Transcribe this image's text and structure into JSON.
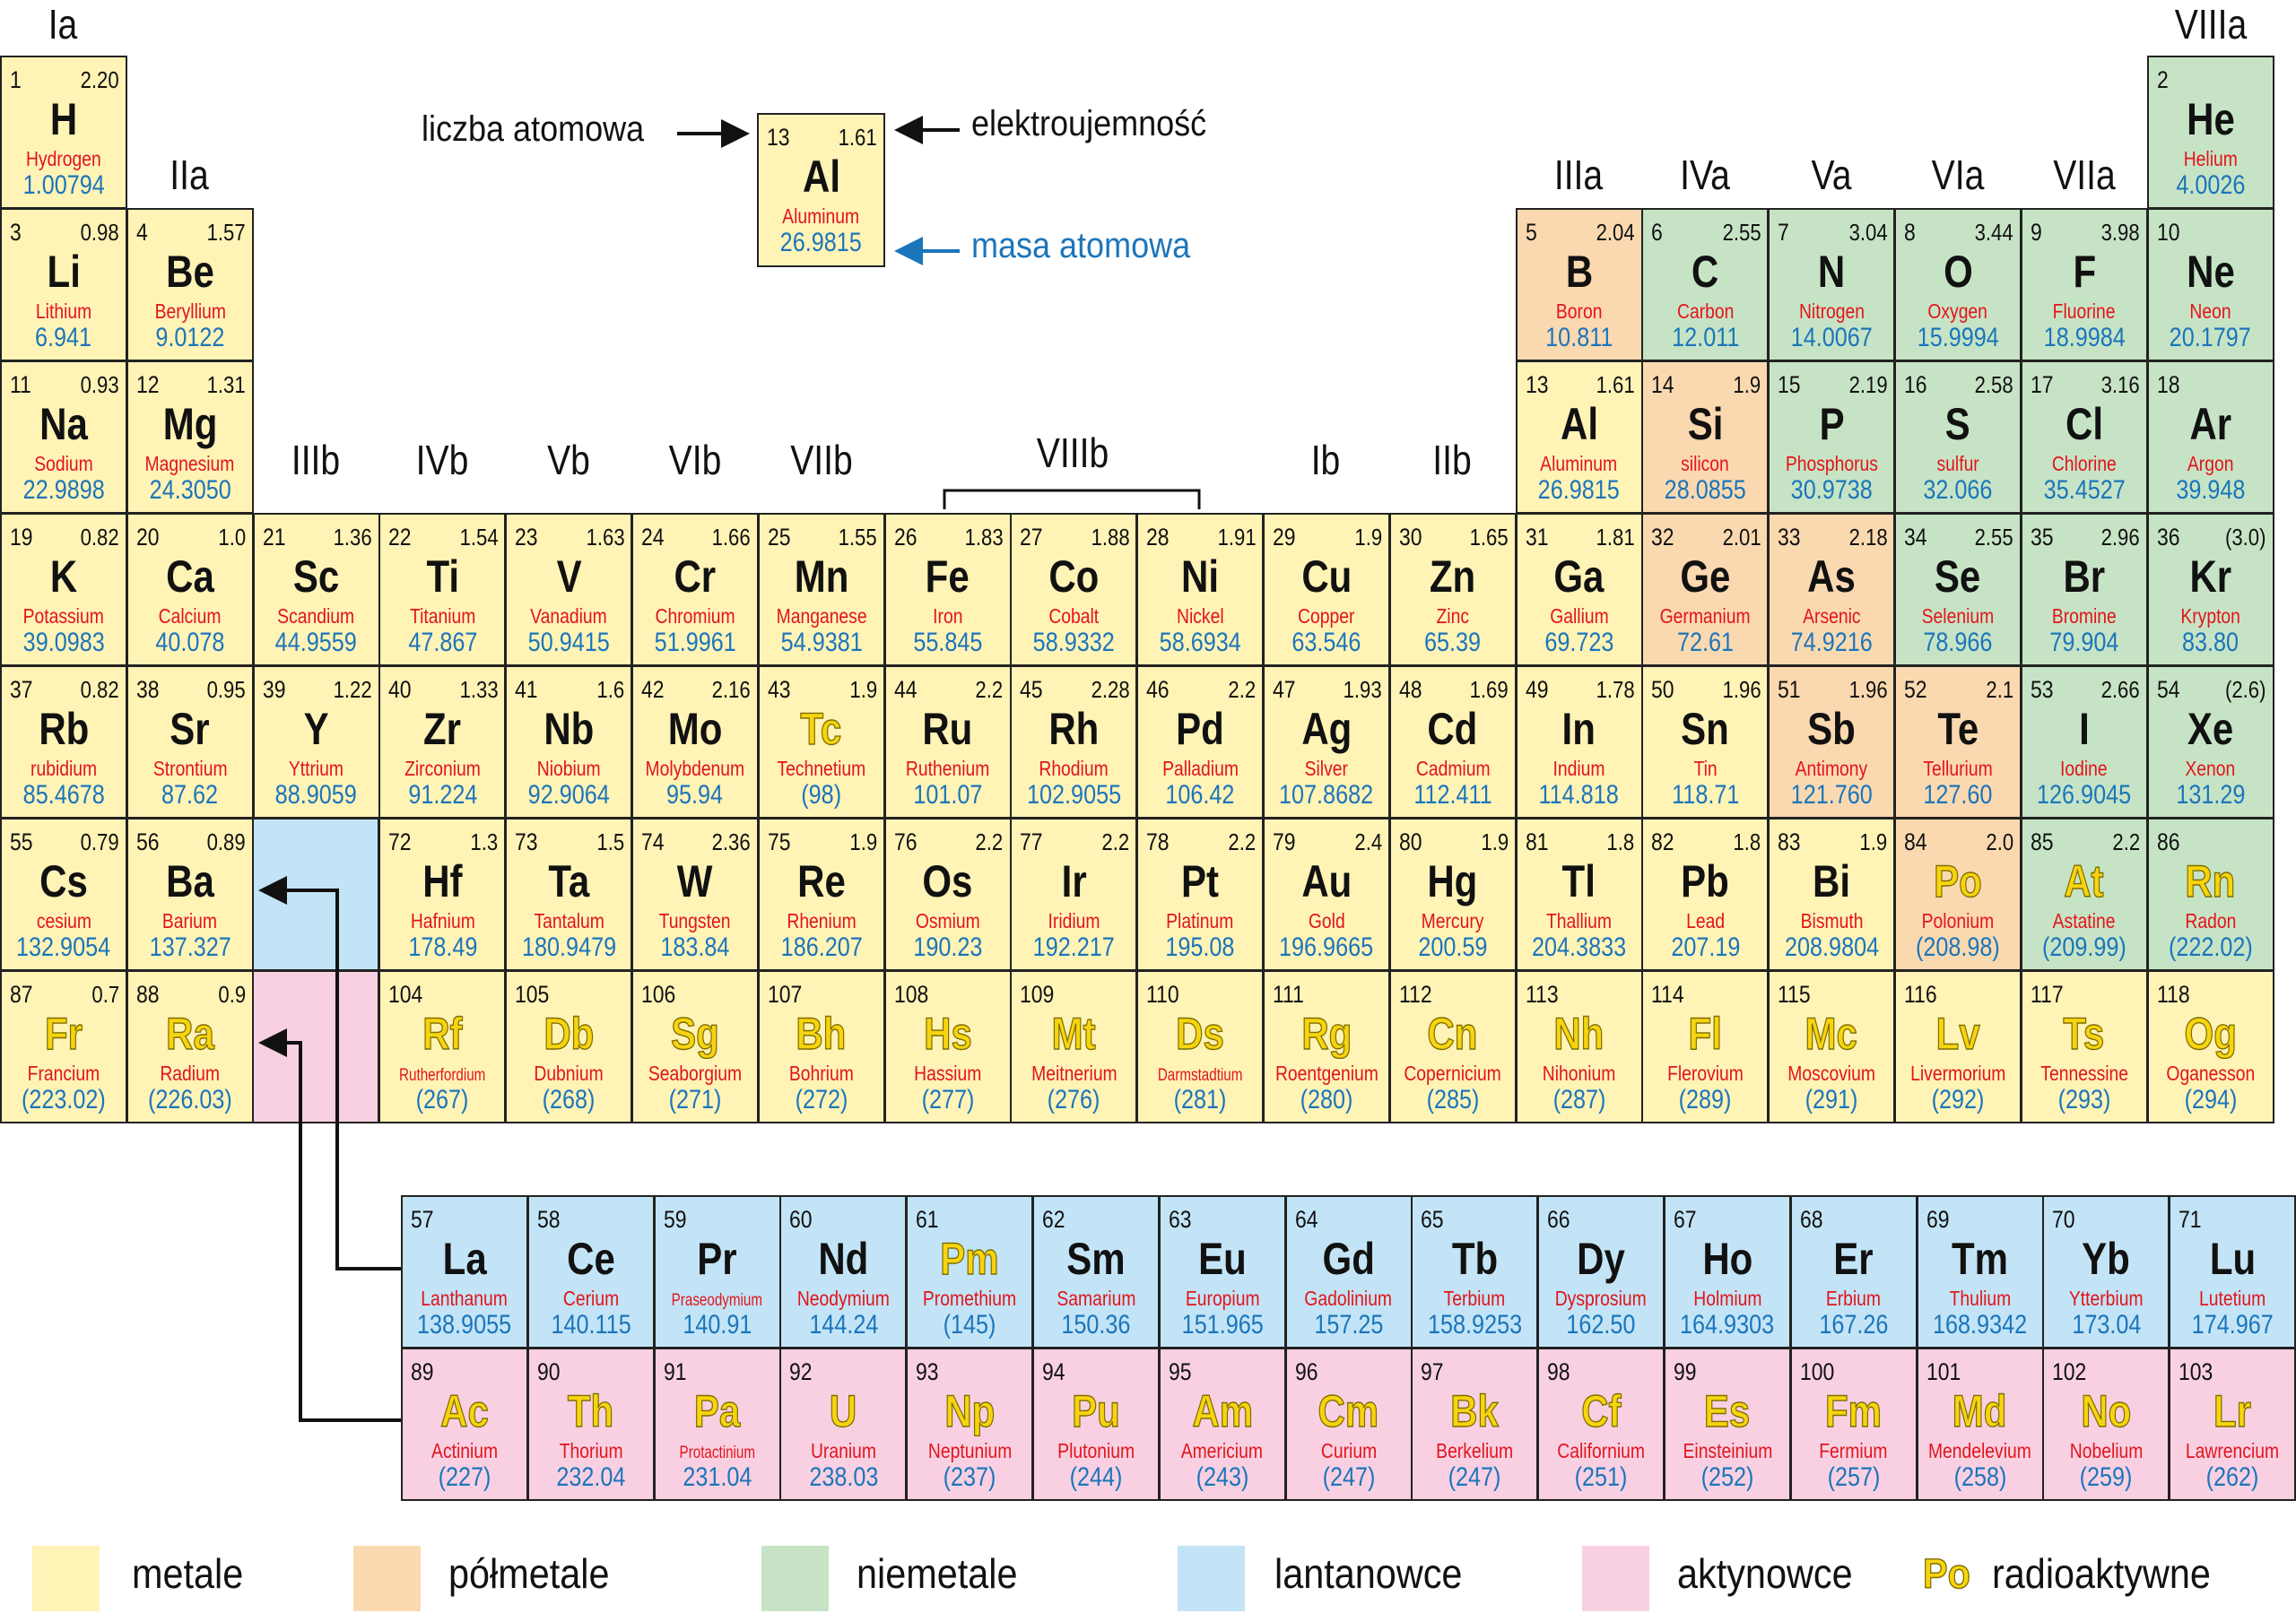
{
  "group_labels": {
    "Ia": "Ia",
    "IIa": "IIa",
    "IIIb": "IIIb",
    "IVb": "IVb",
    "Vb": "Vb",
    "VIb": "VIb",
    "VIIb": "VIIb",
    "VIIIb": "VIIIb",
    "Ib": "Ib",
    "IIb": "IIb",
    "IIIa": "IIIa",
    "IVa": "IVa",
    "Va": "Va",
    "VIa": "VIa",
    "VIIa": "VIIa",
    "VIIIa": "VIIIa"
  },
  "key": {
    "atomic_number_label": "liczba atomowa",
    "electronegativity_label": "elektroujemność",
    "atomic_mass_label": "masa atomowa",
    "example": {
      "z": "13",
      "en": "1.61",
      "sym": "Al",
      "name": "Aluminum",
      "mass": "26.9815"
    }
  },
  "colors": {
    "metal": "#fff3b6",
    "semi": "#fbd9b0",
    "non": "#c6e4c5",
    "lan": "#c2e4f6",
    "act": "#f8d0e2",
    "name": "#e3141b",
    "mass": "#1b75bb",
    "radioactive": "#f7d40f"
  },
  "legend": [
    {
      "label": "metale",
      "color": "#fff3b6"
    },
    {
      "label": "półmetale",
      "color": "#fbd9b0"
    },
    {
      "label": "niemetale",
      "color": "#c6e4c5"
    },
    {
      "label": "lantanowce",
      "color": "#c2e4f6"
    },
    {
      "label": "aktynowce",
      "color": "#f8d0e2"
    }
  ],
  "legend_radioactive": {
    "sample": "Po",
    "label": "radioaktywne"
  },
  "elements": [
    {
      "z": "1",
      "en": "2.20",
      "sym": "H",
      "name": "Hydrogen",
      "mass": "1.00794",
      "cat": "metal",
      "rad": false
    },
    {
      "z": "2",
      "en": "",
      "sym": "He",
      "name": "Helium",
      "mass": "4.0026",
      "cat": "non",
      "rad": false
    },
    {
      "z": "3",
      "en": "0.98",
      "sym": "Li",
      "name": "Lithium",
      "mass": "6.941",
      "cat": "metal",
      "rad": false
    },
    {
      "z": "4",
      "en": "1.57",
      "sym": "Be",
      "name": "Beryllium",
      "mass": "9.0122",
      "cat": "metal",
      "rad": false
    },
    {
      "z": "5",
      "en": "2.04",
      "sym": "B",
      "name": "Boron",
      "mass": "10.811",
      "cat": "semi",
      "rad": false
    },
    {
      "z": "6",
      "en": "2.55",
      "sym": "C",
      "name": "Carbon",
      "mass": "12.011",
      "cat": "non",
      "rad": false
    },
    {
      "z": "7",
      "en": "3.04",
      "sym": "N",
      "name": "Nitrogen",
      "mass": "14.0067",
      "cat": "non",
      "rad": false
    },
    {
      "z": "8",
      "en": "3.44",
      "sym": "O",
      "name": "Oxygen",
      "mass": "15.9994",
      "cat": "non",
      "rad": false
    },
    {
      "z": "9",
      "en": "3.98",
      "sym": "F",
      "name": "Fluorine",
      "mass": "18.9984",
      "cat": "non",
      "rad": false
    },
    {
      "z": "10",
      "en": "",
      "sym": "Ne",
      "name": "Neon",
      "mass": "20.1797",
      "cat": "non",
      "rad": false
    },
    {
      "z": "11",
      "en": "0.93",
      "sym": "Na",
      "name": "Sodium",
      "mass": "22.9898",
      "cat": "metal",
      "rad": false
    },
    {
      "z": "12",
      "en": "1.31",
      "sym": "Mg",
      "name": "Magnesium",
      "mass": "24.3050",
      "cat": "metal",
      "rad": false
    },
    {
      "z": "13",
      "en": "1.61",
      "sym": "Al",
      "name": "Aluminum",
      "mass": "26.9815",
      "cat": "metal",
      "rad": false
    },
    {
      "z": "14",
      "en": "1.9",
      "sym": "Si",
      "name": "silicon",
      "mass": "28.0855",
      "cat": "semi",
      "rad": false
    },
    {
      "z": "15",
      "en": "2.19",
      "sym": "P",
      "name": "Phosphorus",
      "mass": "30.9738",
      "cat": "non",
      "rad": false
    },
    {
      "z": "16",
      "en": "2.58",
      "sym": "S",
      "name": "sulfur",
      "mass": "32.066",
      "cat": "non",
      "rad": false
    },
    {
      "z": "17",
      "en": "3.16",
      "sym": "Cl",
      "name": "Chlorine",
      "mass": "35.4527",
      "cat": "non",
      "rad": false
    },
    {
      "z": "18",
      "en": "",
      "sym": "Ar",
      "name": "Argon",
      "mass": "39.948",
      "cat": "non",
      "rad": false
    },
    {
      "z": "19",
      "en": "0.82",
      "sym": "K",
      "name": "Potassium",
      "mass": "39.0983",
      "cat": "metal",
      "rad": false
    },
    {
      "z": "20",
      "en": "1.0",
      "sym": "Ca",
      "name": "Calcium",
      "mass": "40.078",
      "cat": "metal",
      "rad": false
    },
    {
      "z": "21",
      "en": "1.36",
      "sym": "Sc",
      "name": "Scandium",
      "mass": "44.9559",
      "cat": "metal",
      "rad": false
    },
    {
      "z": "22",
      "en": "1.54",
      "sym": "Ti",
      "name": "Titanium",
      "mass": "47.867",
      "cat": "metal",
      "rad": false
    },
    {
      "z": "23",
      "en": "1.63",
      "sym": "V",
      "name": "Vanadium",
      "mass": "50.9415",
      "cat": "metal",
      "rad": false
    },
    {
      "z": "24",
      "en": "1.66",
      "sym": "Cr",
      "name": "Chromium",
      "mass": "51.9961",
      "cat": "metal",
      "rad": false
    },
    {
      "z": "25",
      "en": "1.55",
      "sym": "Mn",
      "name": "Manganese",
      "mass": "54.9381",
      "cat": "metal",
      "rad": false
    },
    {
      "z": "26",
      "en": "1.83",
      "sym": "Fe",
      "name": "Iron",
      "mass": "55.845",
      "cat": "metal",
      "rad": false
    },
    {
      "z": "27",
      "en": "1.88",
      "sym": "Co",
      "name": "Cobalt",
      "mass": "58.9332",
      "cat": "metal",
      "rad": false
    },
    {
      "z": "28",
      "en": "1.91",
      "sym": "Ni",
      "name": "Nickel",
      "mass": "58.6934",
      "cat": "metal",
      "rad": false
    },
    {
      "z": "29",
      "en": "1.9",
      "sym": "Cu",
      "name": "Copper",
      "mass": "63.546",
      "cat": "metal",
      "rad": false
    },
    {
      "z": "30",
      "en": "1.65",
      "sym": "Zn",
      "name": "Zinc",
      "mass": "65.39",
      "cat": "metal",
      "rad": false
    },
    {
      "z": "31",
      "en": "1.81",
      "sym": "Ga",
      "name": "Gallium",
      "mass": "69.723",
      "cat": "metal",
      "rad": false
    },
    {
      "z": "32",
      "en": "2.01",
      "sym": "Ge",
      "name": "Germanium",
      "mass": "72.61",
      "cat": "semi",
      "rad": false
    },
    {
      "z": "33",
      "en": "2.18",
      "sym": "As",
      "name": "Arsenic",
      "mass": "74.9216",
      "cat": "semi",
      "rad": false
    },
    {
      "z": "34",
      "en": "2.55",
      "sym": "Se",
      "name": "Selenium",
      "mass": "78.966",
      "cat": "non",
      "rad": false
    },
    {
      "z": "35",
      "en": "2.96",
      "sym": "Br",
      "name": "Bromine",
      "mass": "79.904",
      "cat": "non",
      "rad": false
    },
    {
      "z": "36",
      "en": "(3.0)",
      "sym": "Kr",
      "name": "Krypton",
      "mass": "83.80",
      "cat": "non",
      "rad": false
    },
    {
      "z": "37",
      "en": "0.82",
      "sym": "Rb",
      "name": "rubidium",
      "mass": "85.4678",
      "cat": "metal",
      "rad": false
    },
    {
      "z": "38",
      "en": "0.95",
      "sym": "Sr",
      "name": "Strontium",
      "mass": "87.62",
      "cat": "metal",
      "rad": false
    },
    {
      "z": "39",
      "en": "1.22",
      "sym": "Y",
      "name": "Yttrium",
      "mass": "88.9059",
      "cat": "metal",
      "rad": false
    },
    {
      "z": "40",
      "en": "1.33",
      "sym": "Zr",
      "name": "Zirconium",
      "mass": "91.224",
      "cat": "metal",
      "rad": false
    },
    {
      "z": "41",
      "en": "1.6",
      "sym": "Nb",
      "name": "Niobium",
      "mass": "92.9064",
      "cat": "metal",
      "rad": false
    },
    {
      "z": "42",
      "en": "2.16",
      "sym": "Mo",
      "name": "Molybdenum",
      "mass": "95.94",
      "cat": "metal",
      "rad": false
    },
    {
      "z": "43",
      "en": "1.9",
      "sym": "Tc",
      "name": "Technetium",
      "mass": "(98)",
      "cat": "metal",
      "rad": true
    },
    {
      "z": "44",
      "en": "2.2",
      "sym": "Ru",
      "name": "Ruthenium",
      "mass": "101.07",
      "cat": "metal",
      "rad": false
    },
    {
      "z": "45",
      "en": "2.28",
      "sym": "Rh",
      "name": "Rhodium",
      "mass": "102.9055",
      "cat": "metal",
      "rad": false
    },
    {
      "z": "46",
      "en": "2.2",
      "sym": "Pd",
      "name": "Palladium",
      "mass": "106.42",
      "cat": "metal",
      "rad": false
    },
    {
      "z": "47",
      "en": "1.93",
      "sym": "Ag",
      "name": "Silver",
      "mass": "107.8682",
      "cat": "metal",
      "rad": false
    },
    {
      "z": "48",
      "en": "1.69",
      "sym": "Cd",
      "name": "Cadmium",
      "mass": "112.411",
      "cat": "metal",
      "rad": false
    },
    {
      "z": "49",
      "en": "1.78",
      "sym": "In",
      "name": "Indium",
      "mass": "114.818",
      "cat": "metal",
      "rad": false
    },
    {
      "z": "50",
      "en": "1.96",
      "sym": "Sn",
      "name": "Tin",
      "mass": "118.71",
      "cat": "metal",
      "rad": false
    },
    {
      "z": "51",
      "en": "1.96",
      "sym": "Sb",
      "name": "Antimony",
      "mass": "121.760",
      "cat": "semi",
      "rad": false
    },
    {
      "z": "52",
      "en": "2.1",
      "sym": "Te",
      "name": "Tellurium",
      "mass": "127.60",
      "cat": "semi",
      "rad": false
    },
    {
      "z": "53",
      "en": "2.66",
      "sym": "I",
      "name": "Iodine",
      "mass": "126.9045",
      "cat": "non",
      "rad": false
    },
    {
      "z": "54",
      "en": "(2.6)",
      "sym": "Xe",
      "name": "Xenon",
      "mass": "131.29",
      "cat": "non",
      "rad": false
    },
    {
      "z": "55",
      "en": "0.79",
      "sym": "Cs",
      "name": "cesium",
      "mass": "132.9054",
      "cat": "metal",
      "rad": false
    },
    {
      "z": "56",
      "en": "0.89",
      "sym": "Ba",
      "name": "Barium",
      "mass": "137.327",
      "cat": "metal",
      "rad": false
    },
    {
      "z": "57",
      "en": "",
      "sym": "La",
      "name": "Lanthanum",
      "mass": "138.9055",
      "cat": "lan",
      "rad": false
    },
    {
      "z": "58",
      "en": "",
      "sym": "Ce",
      "name": "Cerium",
      "mass": "140.115",
      "cat": "lan",
      "rad": false
    },
    {
      "z": "59",
      "en": "",
      "sym": "Pr",
      "name": "Praseodymium",
      "mass": "140.91",
      "cat": "lan",
      "rad": false
    },
    {
      "z": "60",
      "en": "",
      "sym": "Nd",
      "name": "Neodymium",
      "mass": "144.24",
      "cat": "lan",
      "rad": false
    },
    {
      "z": "61",
      "en": "",
      "sym": "Pm",
      "name": "Promethium",
      "mass": "(145)",
      "cat": "lan",
      "rad": true
    },
    {
      "z": "62",
      "en": "",
      "sym": "Sm",
      "name": "Samarium",
      "mass": "150.36",
      "cat": "lan",
      "rad": false
    },
    {
      "z": "63",
      "en": "",
      "sym": "Eu",
      "name": "Europium",
      "mass": "151.965",
      "cat": "lan",
      "rad": false
    },
    {
      "z": "64",
      "en": "",
      "sym": "Gd",
      "name": "Gadolinium",
      "mass": "157.25",
      "cat": "lan",
      "rad": false
    },
    {
      "z": "65",
      "en": "",
      "sym": "Tb",
      "name": "Terbium",
      "mass": "158.9253",
      "cat": "lan",
      "rad": false
    },
    {
      "z": "66",
      "en": "",
      "sym": "Dy",
      "name": "Dysprosium",
      "mass": "162.50",
      "cat": "lan",
      "rad": false
    },
    {
      "z": "67",
      "en": "",
      "sym": "Ho",
      "name": "Holmium",
      "mass": "164.9303",
      "cat": "lan",
      "rad": false
    },
    {
      "z": "68",
      "en": "",
      "sym": "Er",
      "name": "Erbium",
      "mass": "167.26",
      "cat": "lan",
      "rad": false
    },
    {
      "z": "69",
      "en": "",
      "sym": "Tm",
      "name": "Thulium",
      "mass": "168.9342",
      "cat": "lan",
      "rad": false
    },
    {
      "z": "70",
      "en": "",
      "sym": "Yb",
      "name": "Ytterbium",
      "mass": "173.04",
      "cat": "lan",
      "rad": false
    },
    {
      "z": "71",
      "en": "",
      "sym": "Lu",
      "name": "Lutetium",
      "mass": "174.967",
      "cat": "lan",
      "rad": false
    },
    {
      "z": "72",
      "en": "1.3",
      "sym": "Hf",
      "name": "Hafnium",
      "mass": "178.49",
      "cat": "metal",
      "rad": false
    },
    {
      "z": "73",
      "en": "1.5",
      "sym": "Ta",
      "name": "Tantalum",
      "mass": "180.9479",
      "cat": "metal",
      "rad": false
    },
    {
      "z": "74",
      "en": "2.36",
      "sym": "W",
      "name": "Tungsten",
      "mass": "183.84",
      "cat": "metal",
      "rad": false
    },
    {
      "z": "75",
      "en": "1.9",
      "sym": "Re",
      "name": "Rhenium",
      "mass": "186.207",
      "cat": "metal",
      "rad": false
    },
    {
      "z": "76",
      "en": "2.2",
      "sym": "Os",
      "name": "Osmium",
      "mass": "190.23",
      "cat": "metal",
      "rad": false
    },
    {
      "z": "77",
      "en": "2.2",
      "sym": "Ir",
      "name": "Iridium",
      "mass": "192.217",
      "cat": "metal",
      "rad": false
    },
    {
      "z": "78",
      "en": "2.2",
      "sym": "Pt",
      "name": "Platinum",
      "mass": "195.08",
      "cat": "metal",
      "rad": false
    },
    {
      "z": "79",
      "en": "2.4",
      "sym": "Au",
      "name": "Gold",
      "mass": "196.9665",
      "cat": "metal",
      "rad": false
    },
    {
      "z": "80",
      "en": "1.9",
      "sym": "Hg",
      "name": "Mercury",
      "mass": "200.59",
      "cat": "metal",
      "rad": false
    },
    {
      "z": "81",
      "en": "1.8",
      "sym": "Tl",
      "name": "Thallium",
      "mass": "204.3833",
      "cat": "metal",
      "rad": false
    },
    {
      "z": "82",
      "en": "1.8",
      "sym": "Pb",
      "name": "Lead",
      "mass": "207.19",
      "cat": "metal",
      "rad": false
    },
    {
      "z": "83",
      "en": "1.9",
      "sym": "Bi",
      "name": "Bismuth",
      "mass": "208.9804",
      "cat": "metal",
      "rad": false
    },
    {
      "z": "84",
      "en": "2.0",
      "sym": "Po",
      "name": "Polonium",
      "mass": "(208.98)",
      "cat": "semi",
      "rad": true
    },
    {
      "z": "85",
      "en": "2.2",
      "sym": "At",
      "name": "Astatine",
      "mass": "(209.99)",
      "cat": "non",
      "rad": true
    },
    {
      "z": "86",
      "en": "",
      "sym": "Rn",
      "name": "Radon",
      "mass": "(222.02)",
      "cat": "non",
      "rad": true
    },
    {
      "z": "87",
      "en": "0.7",
      "sym": "Fr",
      "name": "Francium",
      "mass": "(223.02)",
      "cat": "metal",
      "rad": true
    },
    {
      "z": "88",
      "en": "0.9",
      "sym": "Ra",
      "name": "Radium",
      "mass": "(226.03)",
      "cat": "metal",
      "rad": true
    },
    {
      "z": "89",
      "en": "",
      "sym": "Ac",
      "name": "Actinium",
      "mass": "(227)",
      "cat": "act",
      "rad": true
    },
    {
      "z": "90",
      "en": "",
      "sym": "Th",
      "name": "Thorium",
      "mass": "232.04",
      "cat": "act",
      "rad": true
    },
    {
      "z": "91",
      "en": "",
      "sym": "Pa",
      "name": "Protactinium",
      "mass": "231.04",
      "cat": "act",
      "rad": true
    },
    {
      "z": "92",
      "en": "",
      "sym": "U",
      "name": "Uranium",
      "mass": "238.03",
      "cat": "act",
      "rad": true
    },
    {
      "z": "93",
      "en": "",
      "sym": "Np",
      "name": "Neptunium",
      "mass": "(237)",
      "cat": "act",
      "rad": true
    },
    {
      "z": "94",
      "en": "",
      "sym": "Pu",
      "name": "Plutonium",
      "mass": "(244)",
      "cat": "act",
      "rad": true
    },
    {
      "z": "95",
      "en": "",
      "sym": "Am",
      "name": "Americium",
      "mass": "(243)",
      "cat": "act",
      "rad": true
    },
    {
      "z": "96",
      "en": "",
      "sym": "Cm",
      "name": "Curium",
      "mass": "(247)",
      "cat": "act",
      "rad": true
    },
    {
      "z": "97",
      "en": "",
      "sym": "Bk",
      "name": "Berkelium",
      "mass": "(247)",
      "cat": "act",
      "rad": true
    },
    {
      "z": "98",
      "en": "",
      "sym": "Cf",
      "name": "Californium",
      "mass": "(251)",
      "cat": "act",
      "rad": true
    },
    {
      "z": "99",
      "en": "",
      "sym": "Es",
      "name": "Einsteinium",
      "mass": "(252)",
      "cat": "act",
      "rad": true
    },
    {
      "z": "100",
      "en": "",
      "sym": "Fm",
      "name": "Fermium",
      "mass": "(257)",
      "cat": "act",
      "rad": true
    },
    {
      "z": "101",
      "en": "",
      "sym": "Md",
      "name": "Mendelevium",
      "mass": "(258)",
      "cat": "act",
      "rad": true
    },
    {
      "z": "102",
      "en": "",
      "sym": "No",
      "name": "Nobelium",
      "mass": "(259)",
      "cat": "act",
      "rad": true
    },
    {
      "z": "103",
      "en": "",
      "sym": "Lr",
      "name": "Lawrencium",
      "mass": "(262)",
      "cat": "act",
      "rad": true
    },
    {
      "z": "104",
      "en": "",
      "sym": "Rf",
      "name": "Rutherfordium",
      "mass": "(267)",
      "cat": "metal",
      "rad": true
    },
    {
      "z": "105",
      "en": "",
      "sym": "Db",
      "name": "Dubnium",
      "mass": "(268)",
      "cat": "metal",
      "rad": true
    },
    {
      "z": "106",
      "en": "",
      "sym": "Sg",
      "name": "Seaborgium",
      "mass": "(271)",
      "cat": "metal",
      "rad": true
    },
    {
      "z": "107",
      "en": "",
      "sym": "Bh",
      "name": "Bohrium",
      "mass": "(272)",
      "cat": "metal",
      "rad": true
    },
    {
      "z": "108",
      "en": "",
      "sym": "Hs",
      "name": "Hassium",
      "mass": "(277)",
      "cat": "metal",
      "rad": true
    },
    {
      "z": "109",
      "en": "",
      "sym": "Mt",
      "name": "Meitnerium",
      "mass": "(276)",
      "cat": "metal",
      "rad": true
    },
    {
      "z": "110",
      "en": "",
      "sym": "Ds",
      "name": "Darmstadtium",
      "mass": "(281)",
      "cat": "metal",
      "rad": true
    },
    {
      "z": "111",
      "en": "",
      "sym": "Rg",
      "name": "Roentgenium",
      "mass": "(280)",
      "cat": "metal",
      "rad": true
    },
    {
      "z": "112",
      "en": "",
      "sym": "Cn",
      "name": "Copernicium",
      "mass": "(285)",
      "cat": "metal",
      "rad": true
    },
    {
      "z": "113",
      "en": "",
      "sym": "Nh",
      "name": "Nihonium",
      "mass": "(287)",
      "cat": "metal",
      "rad": true
    },
    {
      "z": "114",
      "en": "",
      "sym": "Fl",
      "name": "Flerovium",
      "mass": "(289)",
      "cat": "metal",
      "rad": true
    },
    {
      "z": "115",
      "en": "",
      "sym": "Mc",
      "name": "Moscovium",
      "mass": "(291)",
      "cat": "metal",
      "rad": true
    },
    {
      "z": "116",
      "en": "",
      "sym": "Lv",
      "name": "Livermorium",
      "mass": "(292)",
      "cat": "metal",
      "rad": true
    },
    {
      "z": "117",
      "en": "",
      "sym": "Ts",
      "name": "Tennessine",
      "mass": "(293)",
      "cat": "metal",
      "rad": true
    },
    {
      "z": "118",
      "en": "",
      "sym": "Og",
      "name": "Oganesson",
      "mass": "(294)",
      "cat": "metal",
      "rad": true
    }
  ]
}
